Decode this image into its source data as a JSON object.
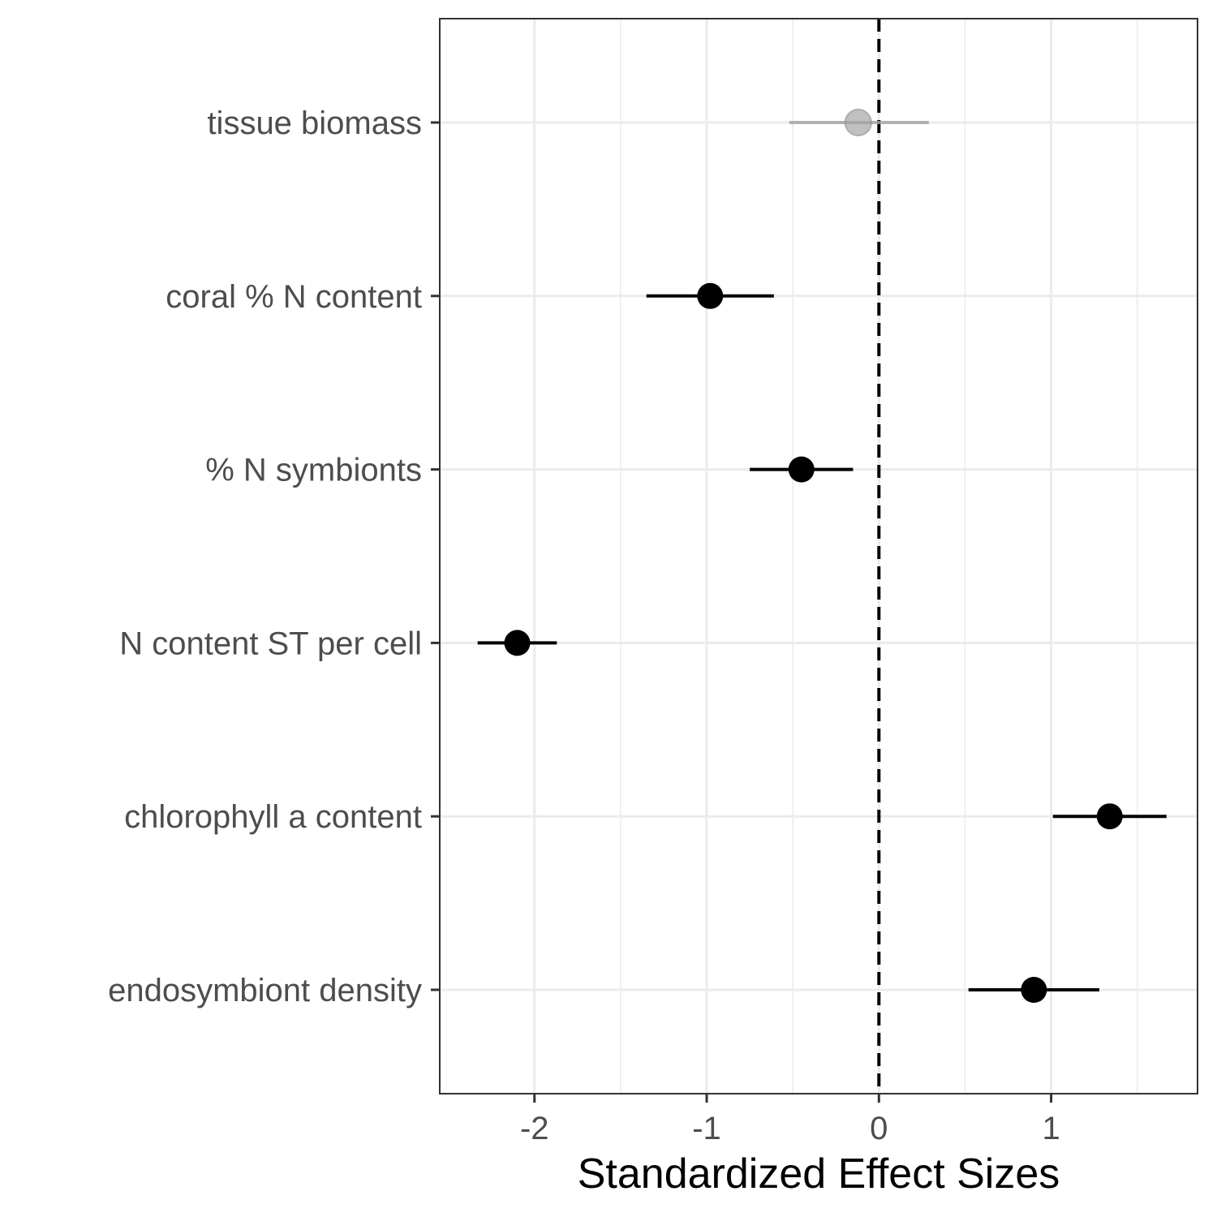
{
  "chart_data": {
    "type": "scatter",
    "subtype": "forest-plot",
    "title": "",
    "xlabel": "Standardized Effect Sizes",
    "ylabel": "",
    "xlim": [
      -2.55,
      1.85
    ],
    "x_ticks": [
      -2,
      -1,
      0,
      1
    ],
    "x_tick_labels": [
      "-2",
      "-1",
      "0",
      "1"
    ],
    "x_minor_ticks": [
      -1.5,
      -0.5,
      0.5,
      1.5
    ],
    "reference_line": {
      "x": 0,
      "style": "dashed",
      "color": "#000000"
    },
    "grid": true,
    "legend": "none",
    "categories": [
      "tissue biomass",
      "coral % N content",
      "% N symbionts",
      "N content ST per cell",
      "chlorophyll a content",
      "endosymbiont density"
    ],
    "points": [
      {
        "label": "tissue biomass",
        "estimate": -0.12,
        "lower": -0.52,
        "upper": 0.29,
        "significant": false
      },
      {
        "label": "coral % N content",
        "estimate": -0.98,
        "lower": -1.35,
        "upper": -0.61,
        "significant": true
      },
      {
        "label": "% N symbionts",
        "estimate": -0.45,
        "lower": -0.75,
        "upper": -0.15,
        "significant": true
      },
      {
        "label": "N content ST per cell",
        "estimate": -2.1,
        "lower": -2.33,
        "upper": -1.87,
        "significant": true
      },
      {
        "label": "chlorophyll a content",
        "estimate": 1.34,
        "lower": 1.01,
        "upper": 1.67,
        "significant": true
      },
      {
        "label": "endosymbiont density",
        "estimate": 0.9,
        "lower": 0.52,
        "upper": 1.28,
        "significant": true
      }
    ],
    "colors": {
      "significant": "#000000",
      "nonsignificant": "#a6a6a6",
      "grid": "#ebebeb",
      "panel_border": "#333333"
    }
  }
}
